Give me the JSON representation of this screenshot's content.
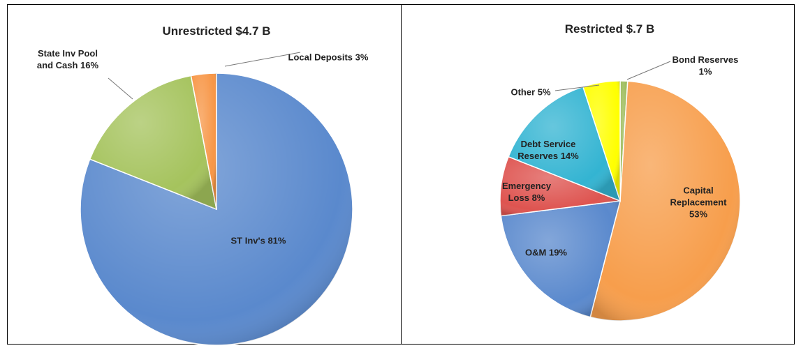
{
  "chart_data": [
    {
      "type": "pie",
      "title": "Unrestricted $4.7 B",
      "categories": [
        "ST Inv's",
        "State Inv Pool and Cash",
        "Local Deposits"
      ],
      "values": [
        81,
        16,
        3
      ],
      "value_labels": [
        "81%",
        "16%",
        "3%"
      ],
      "colors": [
        "#5a89cd",
        "#a5c35d",
        "#f79646"
      ]
    },
    {
      "type": "pie",
      "title": "Restricted $.7 B",
      "categories": [
        "Bond Reserves",
        "Capital Replacement",
        "O&M",
        "Emergency Loss",
        "Debt Service Reserves",
        "Other"
      ],
      "values": [
        1,
        53,
        19,
        8,
        14,
        5
      ],
      "value_labels": [
        "1%",
        "53%",
        "19%",
        "8%",
        "14%",
        "5%"
      ],
      "colors": [
        "#9bbb59",
        "#f79e4c",
        "#5a89cd",
        "#de5450",
        "#33b4d2",
        "#ffff00"
      ]
    }
  ]
}
